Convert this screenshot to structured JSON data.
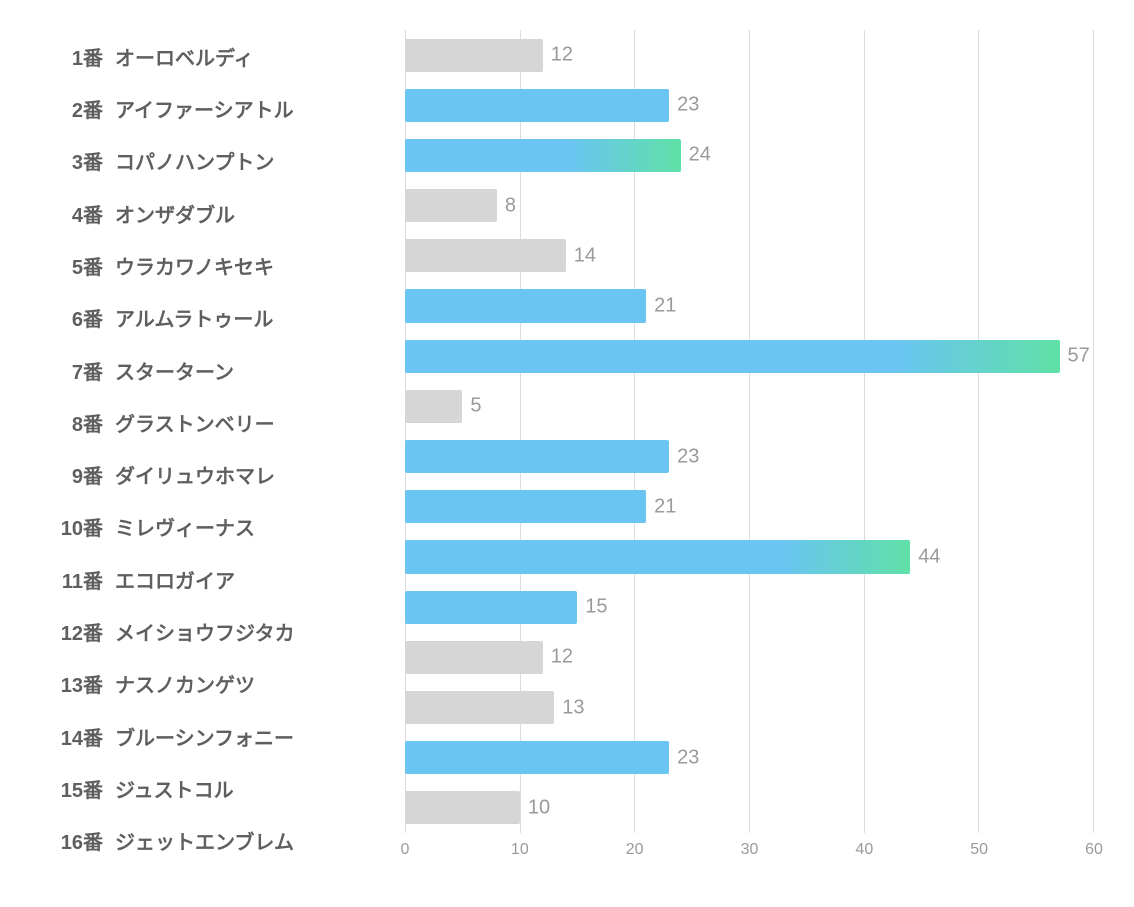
{
  "chart": {
    "type": "bar-horizontal",
    "xlim": [
      0,
      60
    ],
    "xtick_step": 10,
    "xticks": [
      0,
      10,
      20,
      30,
      40,
      50,
      60
    ],
    "grid_color": "#dcdcdc",
    "background_color": "#ffffff",
    "label_color": "#5f5f5f",
    "value_label_color": "#9a9a9a",
    "tick_color": "#9a9a9a",
    "label_fontsize": 20,
    "value_fontsize": 20,
    "tick_fontsize": 16,
    "bar_colors": {
      "gray": "#d6d6d6",
      "blue": "#6ac5f2",
      "gradient_end": "#5fe0a6"
    },
    "bars": [
      {
        "num": "1番",
        "name": "オーロベルディ",
        "value": 12,
        "style": "gray"
      },
      {
        "num": "2番",
        "name": "アイファーシアトル",
        "value": 23,
        "style": "blue"
      },
      {
        "num": "3番",
        "name": "コパノハンプトン",
        "value": 24,
        "style": "gradient-short"
      },
      {
        "num": "4番",
        "name": "オンザダブル",
        "value": 8,
        "style": "gray"
      },
      {
        "num": "5番",
        "name": "ウラカワノキセキ",
        "value": 14,
        "style": "gray"
      },
      {
        "num": "6番",
        "name": "アルムラトゥール",
        "value": 21,
        "style": "blue"
      },
      {
        "num": "7番",
        "name": "スターターン",
        "value": 57,
        "style": "gradient-long"
      },
      {
        "num": "8番",
        "name": "グラストンベリー",
        "value": 5,
        "style": "gray"
      },
      {
        "num": "9番",
        "name": "ダイリュウホマレ",
        "value": 23,
        "style": "blue"
      },
      {
        "num": "10番",
        "name": "ミレヴィーナス",
        "value": 21,
        "style": "blue"
      },
      {
        "num": "11番",
        "name": "エコロガイア",
        "value": 44,
        "style": "gradient-long"
      },
      {
        "num": "12番",
        "name": "メイショウフジタカ",
        "value": 15,
        "style": "blue"
      },
      {
        "num": "13番",
        "name": "ナスノカンゲツ",
        "value": 12,
        "style": "gray"
      },
      {
        "num": "14番",
        "name": "ブルーシンフォニー",
        "value": 13,
        "style": "gray"
      },
      {
        "num": "15番",
        "name": "ジュストコル",
        "value": 23,
        "style": "blue"
      },
      {
        "num": "16番",
        "name": "ジェットエンブレム",
        "value": 10,
        "style": "gray"
      }
    ]
  }
}
